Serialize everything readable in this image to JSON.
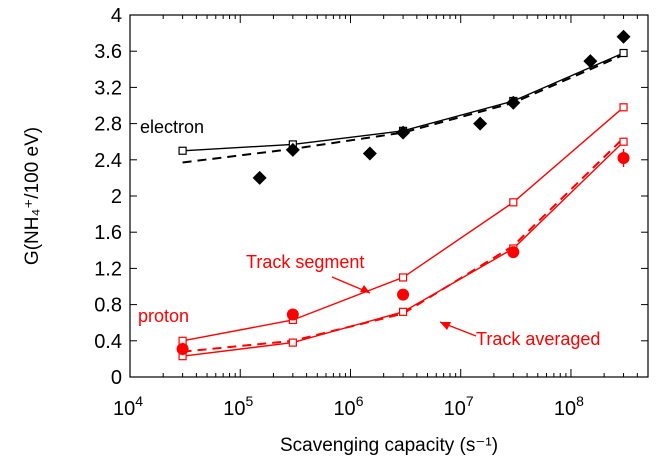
{
  "chart_data": {
    "type": "line",
    "xlabel": "Scavenging capacity (s⁻¹)",
    "ylabel": "G(NH₄⁺/100 eV)",
    "xscale": "log",
    "xlim": [
      10000,
      500000000
    ],
    "ylim": [
      0,
      4
    ],
    "x_ticks": [
      {
        "value": 10000,
        "base": "10",
        "exp": "4"
      },
      {
        "value": 100000,
        "base": "10",
        "exp": "5"
      },
      {
        "value": 1000000,
        "base": "10",
        "exp": "6"
      },
      {
        "value": 10000000,
        "base": "10",
        "exp": "7"
      },
      {
        "value": 100000000,
        "base": "10",
        "exp": "8"
      }
    ],
    "y_ticks": [
      {
        "value": 0,
        "label": "0"
      },
      {
        "value": 0.4,
        "label": "0.4"
      },
      {
        "value": 0.8,
        "label": "0.8"
      },
      {
        "value": 1.2,
        "label": "1.2"
      },
      {
        "value": 1.6,
        "label": "1.6"
      },
      {
        "value": 2.0,
        "label": "2"
      },
      {
        "value": 2.4,
        "label": "2.4"
      },
      {
        "value": 2.8,
        "label": "2.8"
      },
      {
        "value": 3.2,
        "label": "3.2"
      },
      {
        "value": 3.6,
        "label": "3.6"
      },
      {
        "value": 4.0,
        "label": "4"
      }
    ],
    "colors": {
      "electron": "#000000",
      "proton": "#ff0000"
    },
    "series": [
      {
        "group": "electron",
        "style": "solid",
        "marker": "square-open",
        "x": [
          30000,
          300000,
          3000000,
          30000000,
          300000000
        ],
        "y": [
          2.5,
          2.57,
          2.72,
          3.05,
          3.58
        ]
      },
      {
        "group": "electron",
        "style": "dashed",
        "marker": "none",
        "x": [
          30000,
          300000,
          3000000,
          30000000,
          300000000
        ],
        "y": [
          2.37,
          2.52,
          2.7,
          3.03,
          3.56
        ]
      },
      {
        "group": "electron",
        "style": "none",
        "marker": "diamond",
        "x": [
          150000,
          300000,
          1500000,
          3000000,
          15000000,
          30000000,
          150000000,
          300000000
        ],
        "y": [
          2.2,
          2.51,
          2.47,
          2.7,
          2.8,
          3.03,
          3.49,
          3.76
        ]
      },
      {
        "group": "proton",
        "style": "solid",
        "marker": "square-open",
        "x": [
          30000,
          300000,
          3000000,
          30000000,
          300000000
        ],
        "y": [
          0.4,
          0.63,
          1.1,
          1.93,
          2.98
        ]
      },
      {
        "group": "proton",
        "style": "solid",
        "marker": "square-open",
        "x": [
          30000,
          300000,
          3000000,
          30000000,
          300000000
        ],
        "y": [
          0.23,
          0.38,
          0.72,
          1.42,
          2.6
        ]
      },
      {
        "group": "proton",
        "style": "dashed",
        "marker": "none",
        "x": [
          30000,
          300000,
          3000000,
          30000000,
          300000000
        ],
        "y": [
          0.28,
          0.4,
          0.7,
          1.45,
          2.64
        ]
      },
      {
        "group": "proton",
        "style": "none",
        "marker": "circle",
        "x": [
          30000,
          300000,
          3000000,
          30000000,
          300000000
        ],
        "y": [
          0.31,
          0.69,
          0.91,
          1.38,
          2.42
        ],
        "err": [
          0.07,
          0.04,
          0.04,
          0.05,
          0.1
        ]
      }
    ],
    "annotations": {
      "electron": "electron",
      "proton": "proton",
      "track_segment": "Track segment",
      "track_averaged": "Track averaged"
    }
  }
}
